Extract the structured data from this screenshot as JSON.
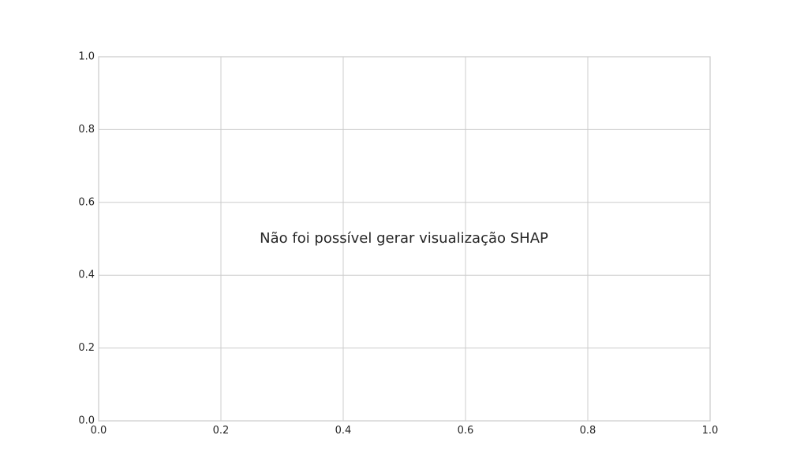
{
  "chart_data": {
    "type": "scatter",
    "title": "",
    "xlabel": "",
    "ylabel": "",
    "xlim": [
      0.0,
      1.0
    ],
    "ylim": [
      0.0,
      1.0
    ],
    "grid": true,
    "series": [],
    "x_ticks": [
      "0.0",
      "0.2",
      "0.4",
      "0.6",
      "0.8",
      "1.0"
    ],
    "y_ticks": [
      "0.0",
      "0.2",
      "0.4",
      "0.6",
      "0.8",
      "1.0"
    ],
    "annotation": "Não foi possível gerar visualização SHAP",
    "colors": {
      "background": "#ffffff",
      "grid": "#cccccc",
      "spine": "#cccccc",
      "tick_text": "#262626",
      "annotation_text": "#262626"
    }
  }
}
